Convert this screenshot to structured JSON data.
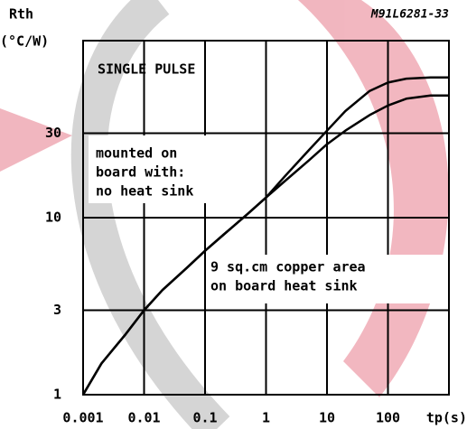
{
  "chart_data": {
    "type": "line",
    "code": "M91L6281-33",
    "ylabel": "Rth",
    "yunit": "(°C/W)",
    "xlabel": "tp(s)",
    "log_x": true,
    "log_y": true,
    "grid": true,
    "x": [
      0.001,
      0.002,
      0.005,
      0.01,
      0.02,
      0.05,
      0.1,
      0.2,
      0.5,
      1,
      2,
      5,
      10,
      20,
      50,
      100,
      200,
      500,
      1000
    ],
    "series": [
      {
        "color": "#000000",
        "values": [
          1.0,
          1.5,
          2.2,
          3.0,
          3.9,
          5.2,
          6.5,
          8.0,
          10.5,
          13,
          17,
          24,
          31,
          40,
          52,
          58,
          61,
          62,
          62
        ]
      },
      {
        "color": "#000000",
        "values": [
          1.0,
          1.5,
          2.2,
          3.0,
          3.9,
          5.2,
          6.5,
          8.0,
          10.5,
          13,
          16,
          21,
          26,
          31,
          38,
          43,
          47,
          49,
          49
        ]
      }
    ],
    "xlim": [
      0.001,
      1000
    ],
    "ylim": [
      1,
      100
    ],
    "xticks": [
      0.001,
      0.01,
      0.1,
      1,
      10,
      100
    ],
    "yticks": [
      1,
      3,
      10,
      30
    ],
    "annotations": [
      {
        "lines": [
          "SINGLE PULSE"
        ]
      },
      {
        "lines": [
          "mounted on",
          "board with:",
          "no heat sink"
        ]
      },
      {
        "lines": [
          "9 sq.cm copper area",
          "on board heat sink"
        ]
      }
    ]
  }
}
